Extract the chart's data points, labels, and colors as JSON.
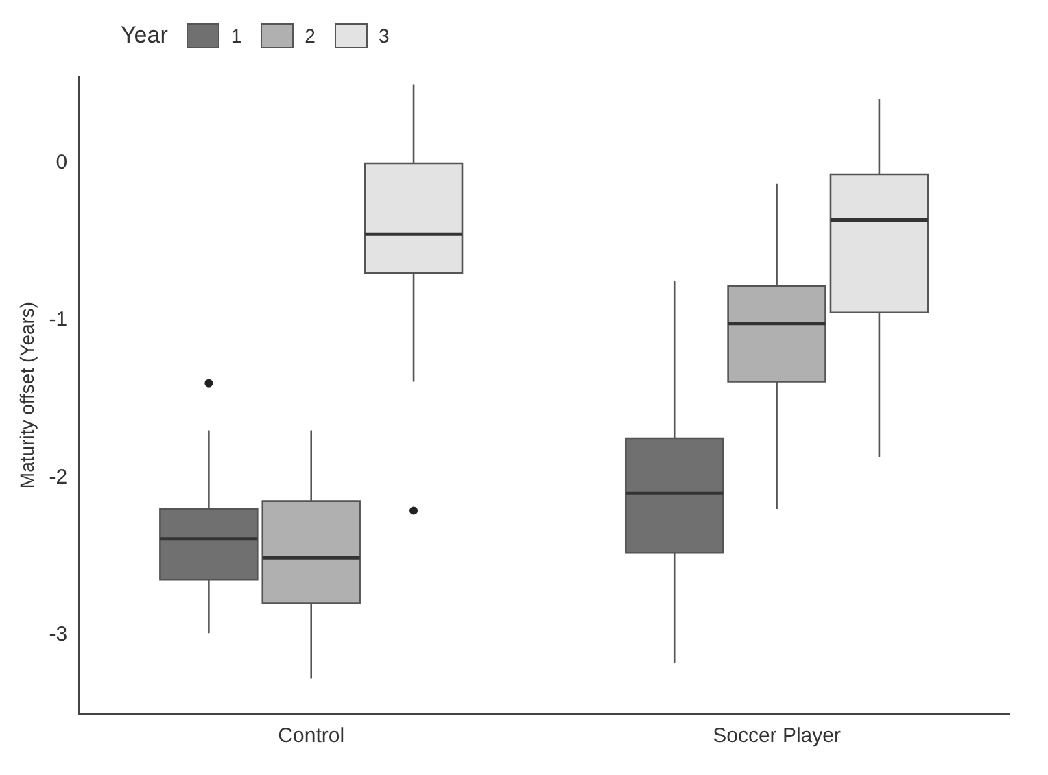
{
  "chart_data": {
    "type": "box",
    "ylabel": "Maturity offset (Years)",
    "legend_title": "Year",
    "legend": "top left",
    "categories": [
      "Control",
      "Soccer Player"
    ],
    "ylim": [
      -3.5,
      0.55
    ],
    "yticks": [
      -3,
      -2,
      -1,
      0
    ],
    "grid": false,
    "series": [
      {
        "name": "1",
        "color": "#707070",
        "boxes": [
          {
            "low": -2.99,
            "q1": -2.65,
            "median": -2.39,
            "q3": -2.2,
            "high": -1.7,
            "outliers": [
              -1.4
            ]
          },
          {
            "low": -3.18,
            "q1": -2.48,
            "median": -2.1,
            "q3": -1.75,
            "high": -0.75
          }
        ]
      },
      {
        "name": "2",
        "color": "#b0b0b0",
        "boxes": [
          {
            "low": -3.28,
            "q1": -2.8,
            "median": -2.51,
            "q3": -2.15,
            "high": -1.7
          },
          {
            "low": -2.2,
            "q1": -1.39,
            "median": -1.02,
            "q3": -0.78,
            "high": -0.13
          }
        ]
      },
      {
        "name": "3",
        "color": "#e3e3e3",
        "boxes": [
          {
            "low": -1.39,
            "q1": -0.7,
            "median": -0.45,
            "q3": 0,
            "high": 0.5,
            "outliers": [
              -2.21
            ]
          },
          {
            "low": -1.87,
            "q1": -0.95,
            "median": -0.36,
            "q3": -0.07,
            "high": 0.41
          }
        ]
      }
    ]
  }
}
